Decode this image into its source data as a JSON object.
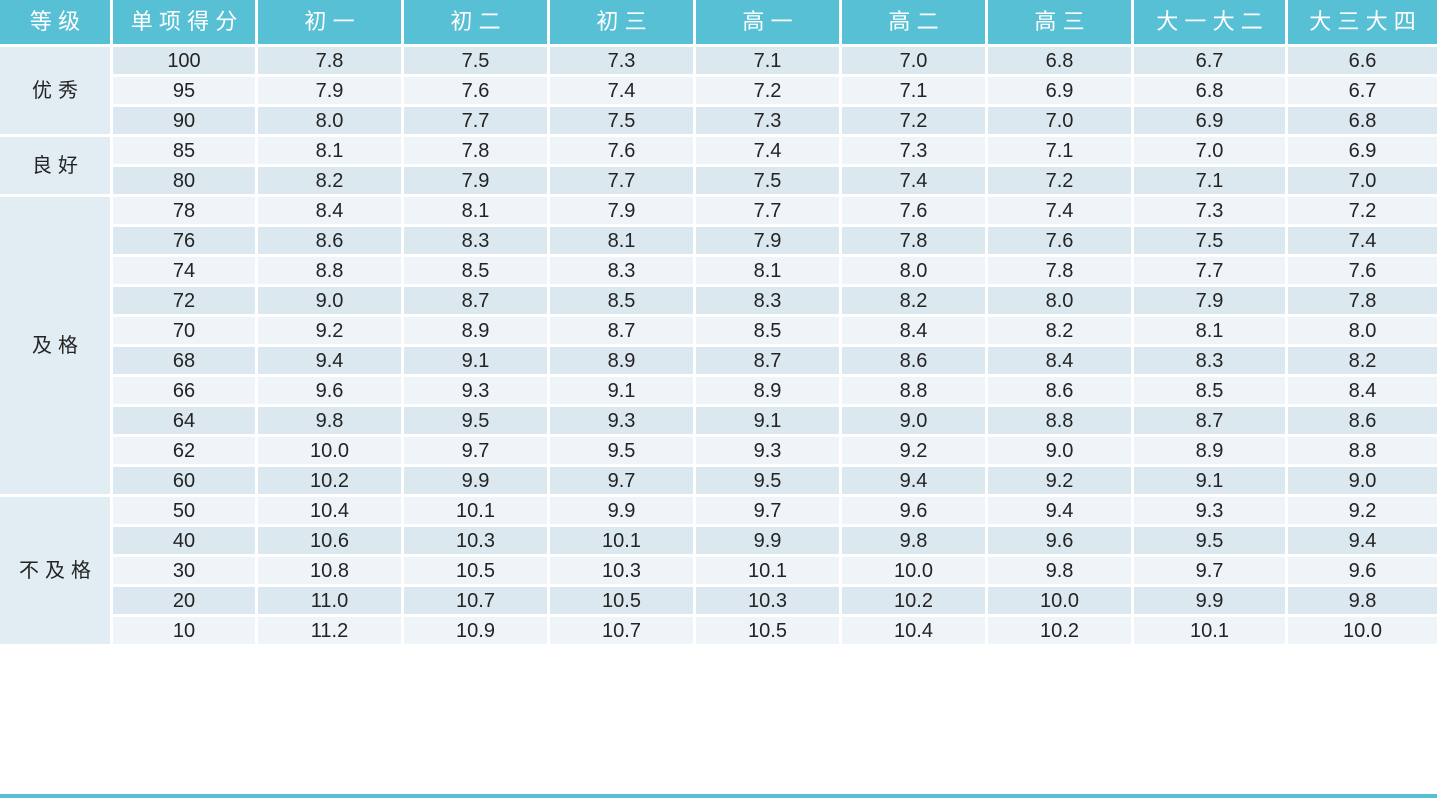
{
  "colors": {
    "header_bg": "#58c0d4",
    "header_text": "#ffffff",
    "row_band_dark": "#dbe8f0",
    "row_band_light": "#eef4f8",
    "group_cell_bg": "#e1ecf3",
    "body_text": "#242424",
    "gridline": "#ffffff",
    "bottom_border": "#58c0d4"
  },
  "chart_data": {
    "type": "table",
    "columns": [
      "等级",
      "单项得分",
      "初一",
      "初二",
      "初三",
      "高一",
      "高二",
      "高三",
      "大一大二",
      "大三大四"
    ],
    "groups": [
      {
        "label": "优秀",
        "rows": [
          {
            "score": "100",
            "values": [
              "7.8",
              "7.5",
              "7.3",
              "7.1",
              "7.0",
              "6.8",
              "6.7",
              "6.6"
            ]
          },
          {
            "score": "95",
            "values": [
              "7.9",
              "7.6",
              "7.4",
              "7.2",
              "7.1",
              "6.9",
              "6.8",
              "6.7"
            ]
          },
          {
            "score": "90",
            "values": [
              "8.0",
              "7.7",
              "7.5",
              "7.3",
              "7.2",
              "7.0",
              "6.9",
              "6.8"
            ]
          }
        ]
      },
      {
        "label": "良好",
        "rows": [
          {
            "score": "85",
            "values": [
              "8.1",
              "7.8",
              "7.6",
              "7.4",
              "7.3",
              "7.1",
              "7.0",
              "6.9"
            ]
          },
          {
            "score": "80",
            "values": [
              "8.2",
              "7.9",
              "7.7",
              "7.5",
              "7.4",
              "7.2",
              "7.1",
              "7.0"
            ]
          }
        ]
      },
      {
        "label": "及格",
        "rows": [
          {
            "score": "78",
            "values": [
              "8.4",
              "8.1",
              "7.9",
              "7.7",
              "7.6",
              "7.4",
              "7.3",
              "7.2"
            ]
          },
          {
            "score": "76",
            "values": [
              "8.6",
              "8.3",
              "8.1",
              "7.9",
              "7.8",
              "7.6",
              "7.5",
              "7.4"
            ]
          },
          {
            "score": "74",
            "values": [
              "8.8",
              "8.5",
              "8.3",
              "8.1",
              "8.0",
              "7.8",
              "7.7",
              "7.6"
            ]
          },
          {
            "score": "72",
            "values": [
              "9.0",
              "8.7",
              "8.5",
              "8.3",
              "8.2",
              "8.0",
              "7.9",
              "7.8"
            ]
          },
          {
            "score": "70",
            "values": [
              "9.2",
              "8.9",
              "8.7",
              "8.5",
              "8.4",
              "8.2",
              "8.1",
              "8.0"
            ]
          },
          {
            "score": "68",
            "values": [
              "9.4",
              "9.1",
              "8.9",
              "8.7",
              "8.6",
              "8.4",
              "8.3",
              "8.2"
            ]
          },
          {
            "score": "66",
            "values": [
              "9.6",
              "9.3",
              "9.1",
              "8.9",
              "8.8",
              "8.6",
              "8.5",
              "8.4"
            ]
          },
          {
            "score": "64",
            "values": [
              "9.8",
              "9.5",
              "9.3",
              "9.1",
              "9.0",
              "8.8",
              "8.7",
              "8.6"
            ]
          },
          {
            "score": "62",
            "values": [
              "10.0",
              "9.7",
              "9.5",
              "9.3",
              "9.2",
              "9.0",
              "8.9",
              "8.8"
            ]
          },
          {
            "score": "60",
            "values": [
              "10.2",
              "9.9",
              "9.7",
              "9.5",
              "9.4",
              "9.2",
              "9.1",
              "9.0"
            ]
          }
        ]
      },
      {
        "label": "不及格",
        "rows": [
          {
            "score": "50",
            "values": [
              "10.4",
              "10.1",
              "9.9",
              "9.7",
              "9.6",
              "9.4",
              "9.3",
              "9.2"
            ]
          },
          {
            "score": "40",
            "values": [
              "10.6",
              "10.3",
              "10.1",
              "9.9",
              "9.8",
              "9.6",
              "9.5",
              "9.4"
            ]
          },
          {
            "score": "30",
            "values": [
              "10.8",
              "10.5",
              "10.3",
              "10.1",
              "10.0",
              "9.8",
              "9.7",
              "9.6"
            ]
          },
          {
            "score": "20",
            "values": [
              "11.0",
              "10.7",
              "10.5",
              "10.3",
              "10.2",
              "10.0",
              "9.9",
              "9.8"
            ]
          },
          {
            "score": "10",
            "values": [
              "11.2",
              "10.9",
              "10.7",
              "10.5",
              "10.4",
              "10.2",
              "10.1",
              "10.0"
            ]
          }
        ]
      }
    ]
  }
}
